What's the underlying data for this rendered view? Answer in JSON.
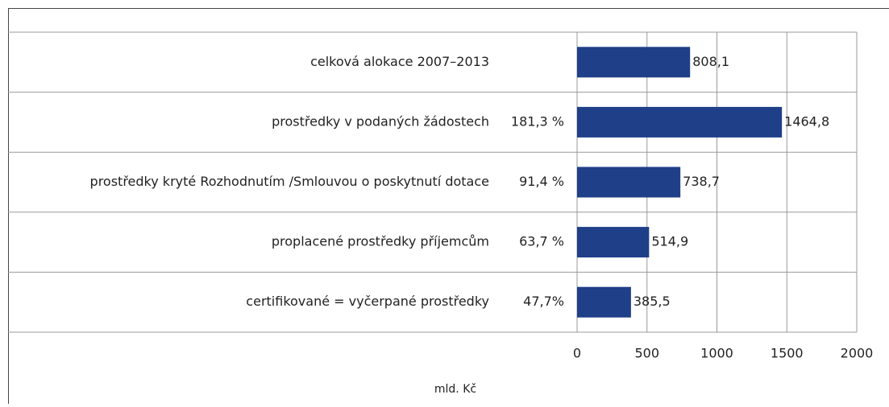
{
  "chart_data": {
    "type": "bar",
    "orientation": "horizontal",
    "categories": [
      "celková alokace 2007–2013",
      "prostředky v podaných žádostech",
      "prostředky kryté Rozhodnutím /Smlouvou o poskytnutí dotace",
      "proplacené prostředky příjemcům",
      "certifikované = vyčerpané prostředky"
    ],
    "shares": [
      null,
      "181,3 %",
      "91,4 %",
      "63,7 %",
      "47,7%"
    ],
    "values": [
      808.1,
      1464.8,
      738.7,
      514.9,
      385.5
    ],
    "value_labels": [
      "808,1",
      "1464,8",
      "738,7",
      "514,9",
      "385,5"
    ],
    "color": "#1f3f88",
    "xlim": [
      0,
      2000
    ],
    "xticks": [
      0,
      500,
      1000,
      1500,
      2000
    ],
    "x_label": "mld. Kč",
    "grid": true
  }
}
